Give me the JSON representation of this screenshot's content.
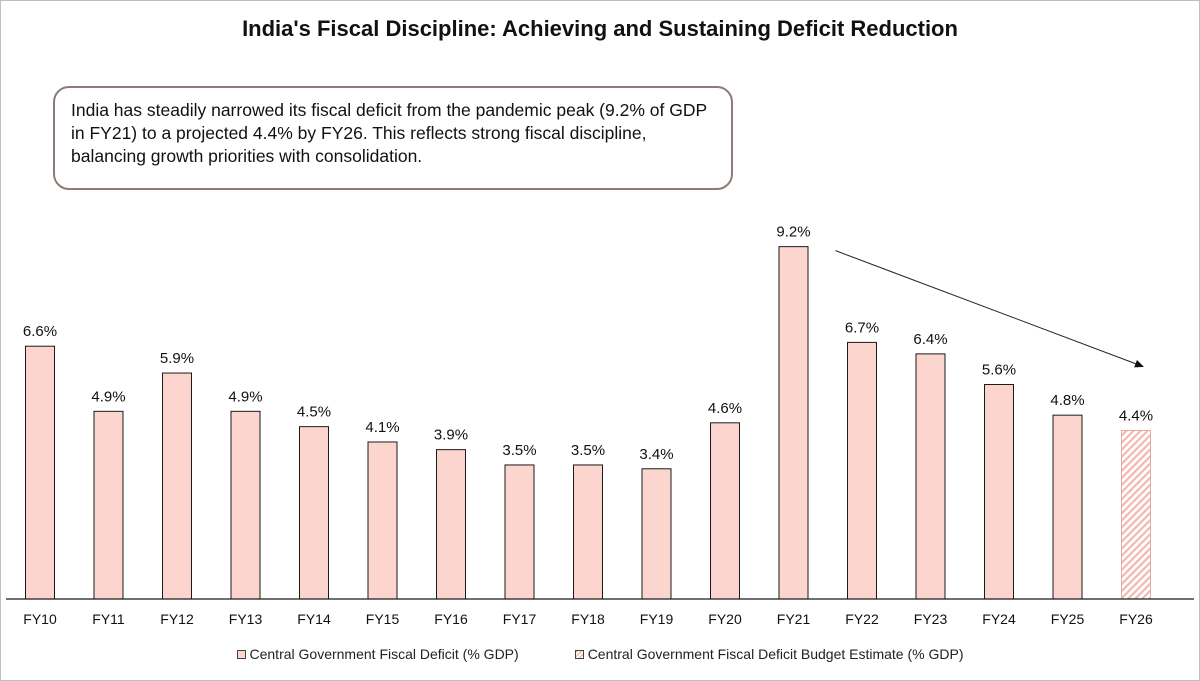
{
  "chart_data": {
    "type": "bar",
    "title": "India's Fiscal Discipline: Achieving and Sustaining Deficit Reduction",
    "categories": [
      "FY10",
      "FY11",
      "FY12",
      "FY13",
      "FY14",
      "FY15",
      "FY16",
      "FY17",
      "FY18",
      "FY19",
      "FY20",
      "FY21",
      "FY22",
      "FY23",
      "FY24",
      "FY25",
      "FY26"
    ],
    "values": [
      6.6,
      4.9,
      5.9,
      4.9,
      4.5,
      4.1,
      3.9,
      3.5,
      3.5,
      3.4,
      4.6,
      9.2,
      6.7,
      6.4,
      5.6,
      4.8,
      4.4
    ],
    "data_labels": [
      "6.6%",
      "4.9%",
      "5.9%",
      "4.9%",
      "4.5%",
      "4.1%",
      "3.9%",
      "3.5%",
      "3.5%",
      "3.4%",
      "4.6%",
      "9.2%",
      "6.7%",
      "6.4%",
      "5.6%",
      "4.8%",
      "4.4%"
    ],
    "series": [
      {
        "name": "Central Government Fiscal Deficit  (% GDP)",
        "categories": [
          "FY10",
          "FY11",
          "FY12",
          "FY13",
          "FY14",
          "FY15",
          "FY16",
          "FY17",
          "FY18",
          "FY19",
          "FY20",
          "FY21",
          "FY22",
          "FY23",
          "FY24",
          "FY25"
        ],
        "fill": "solid"
      },
      {
        "name": "Central Government Fiscal Deficit Budget Estimate (% GDP)",
        "categories": [
          "FY26"
        ],
        "fill": "hatched"
      }
    ],
    "ylim": [
      0,
      10
    ],
    "xlabel": "",
    "ylabel": "",
    "grid": false,
    "legend": "bottom",
    "annotation": "India has steadily narrowed its fiscal deficit from the pandemic peak (9.2% of GDP in FY21) to a projected 4.4% by FY26. This reflects strong fiscal discipline, balancing growth priorities with consolidation.",
    "trend_arrow": {
      "from": "FY21",
      "to": "FY26"
    }
  },
  "colors": {
    "bar_fill": "#fcd5cf",
    "bar_stroke": "#1a1a1a",
    "hatch": "#f4b7b0",
    "callout_border": "#8b7d75"
  }
}
